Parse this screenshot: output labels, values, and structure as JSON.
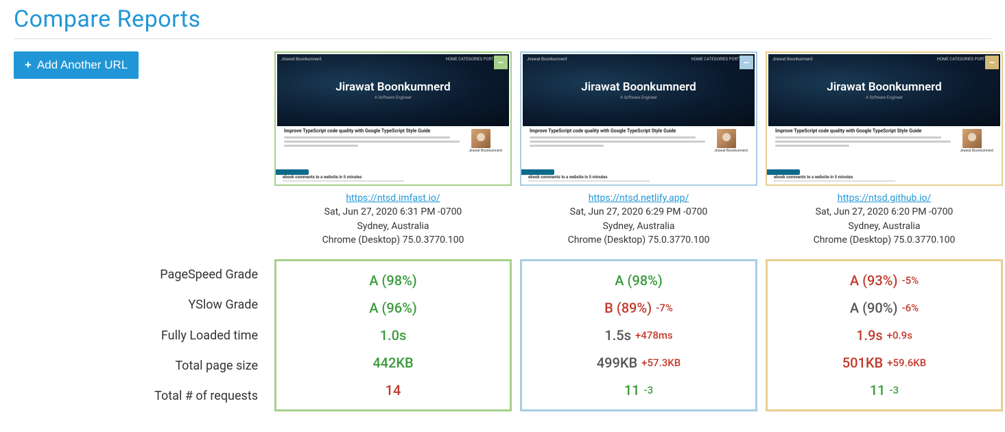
{
  "page": {
    "title": "Compare Reports",
    "add_button_label": "Add Another URL"
  },
  "metric_labels": [
    "PageSpeed Grade",
    "YSlow Grade",
    "Fully Loaded time",
    "Total page size",
    "Total # of requests"
  ],
  "thumbnail": {
    "nav_left": "Jirawat Boonkumnerd",
    "nav_right": "HOME  CATEGORIES  PORTFOLIO",
    "hero_title": "Jirawat Boonkumnerd",
    "hero_sub": "A Software Engineer",
    "body_headline": "Improve TypeScript code quality with Google TypeScript Style Guide",
    "avatar_name": "Jirawat Boonkumnerd",
    "footer_headline": "ebook comments to a website in 5 minutes"
  },
  "colors": {
    "green_border": "#a6d08a",
    "blue_border": "#a8cde4",
    "yellow_border": "#e8ce8f",
    "green_btn": "#a6d08a",
    "blue_btn": "#a8cde4",
    "yellow_btn": "#d4b976",
    "green_text": "#3a9b3a",
    "red_text": "#c0392b",
    "gray_text": "#555555"
  },
  "reports": [
    {
      "id": 0,
      "border_color": "#a6d08a",
      "collapse_color": "#a6d08a",
      "url": "https://ntsd.imfast.io/",
      "timestamp": "Sat, Jun 27, 2020 6:31 PM -0700",
      "location": "Sydney, Australia",
      "browser": "Chrome (Desktop) 75.0.3770.100",
      "metrics": [
        {
          "main": "A (98%)",
          "main_color": "#3a9b3a",
          "delta": "",
          "delta_color": ""
        },
        {
          "main": "A (96%)",
          "main_color": "#3a9b3a",
          "delta": "",
          "delta_color": ""
        },
        {
          "main": "1.0s",
          "main_color": "#3a9b3a",
          "delta": "",
          "delta_color": ""
        },
        {
          "main": "442KB",
          "main_color": "#3a9b3a",
          "delta": "",
          "delta_color": ""
        },
        {
          "main": "14",
          "main_color": "#c0392b",
          "delta": "",
          "delta_color": ""
        }
      ]
    },
    {
      "id": 1,
      "border_color": "#a8cde4",
      "collapse_color": "#a8cde4",
      "url": "https://ntsd.netlify.app/",
      "timestamp": "Sat, Jun 27, 2020 6:29 PM -0700",
      "location": "Sydney, Australia",
      "browser": "Chrome (Desktop) 75.0.3770.100",
      "metrics": [
        {
          "main": "A (98%)",
          "main_color": "#3a9b3a",
          "delta": "",
          "delta_color": ""
        },
        {
          "main": "B (89%)",
          "main_color": "#c0392b",
          "delta": "-7%",
          "delta_color": "#c0392b"
        },
        {
          "main": "1.5s",
          "main_color": "#555555",
          "delta": "+478ms",
          "delta_color": "#c0392b"
        },
        {
          "main": "499KB",
          "main_color": "#555555",
          "delta": "+57.3KB",
          "delta_color": "#c0392b"
        },
        {
          "main": "11",
          "main_color": "#3a9b3a",
          "delta": "-3",
          "delta_color": "#3a9b3a"
        }
      ]
    },
    {
      "id": 2,
      "border_color": "#e8ce8f",
      "collapse_color": "#d4b976",
      "url": "https://ntsd.github.io/",
      "timestamp": "Sat, Jun 27, 2020 6:20 PM -0700",
      "location": "Sydney, Australia",
      "browser": "Chrome (Desktop) 75.0.3770.100",
      "metrics": [
        {
          "main": "A (93%)",
          "main_color": "#c0392b",
          "delta": "-5%",
          "delta_color": "#c0392b"
        },
        {
          "main": "A (90%)",
          "main_color": "#555555",
          "delta": "-6%",
          "delta_color": "#c0392b"
        },
        {
          "main": "1.9s",
          "main_color": "#c0392b",
          "delta": "+0.9s",
          "delta_color": "#c0392b"
        },
        {
          "main": "501KB",
          "main_color": "#c0392b",
          "delta": "+59.6KB",
          "delta_color": "#c0392b"
        },
        {
          "main": "11",
          "main_color": "#3a9b3a",
          "delta": "-3",
          "delta_color": "#3a9b3a"
        }
      ]
    }
  ]
}
